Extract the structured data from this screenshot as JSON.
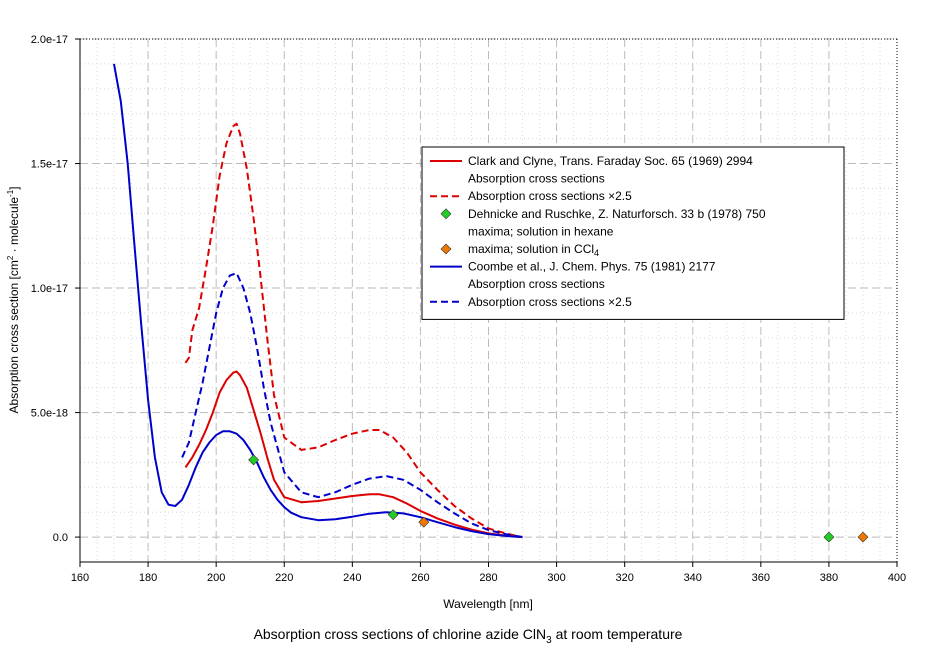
{
  "chart_data": {
    "type": "line",
    "title": "Absorption cross sections of chlorine azide ClN",
    "title_subscript": "3",
    "title_suffix": " at room temperature",
    "xlabel": "Wavelength [nm]",
    "ylabel": "Absorption cross section [cm",
    "ylabel_sup1": "2",
    "ylabel_mid": " · molecule",
    "ylabel_sup2": "-1",
    "ylabel_end": "]",
    "xlim": [
      160,
      400
    ],
    "ylim": [
      -1e-18,
      2e-17
    ],
    "x_ticks": [
      "160",
      "180",
      "200",
      "220",
      "240",
      "260",
      "280",
      "300",
      "320",
      "340",
      "360",
      "380",
      "400"
    ],
    "x_tick_values": [
      160,
      180,
      200,
      220,
      240,
      260,
      280,
      300,
      320,
      340,
      360,
      380,
      400
    ],
    "y_ticks": [
      "0.0",
      "5.0e-18",
      "1.0e-17",
      "1.5e-17",
      "2.0e-17"
    ],
    "y_tick_values": [
      0,
      5e-18,
      1e-17,
      1.5e-17,
      2e-17
    ],
    "colors": {
      "red": "#dd0000",
      "blue": "#0000cc",
      "green": "#22cc22",
      "orange": "#ee7700"
    },
    "series": [
      {
        "name": "Clark and Clyne absorption cross sections",
        "color": "red",
        "dash": false,
        "x": [
          191,
          193,
          195,
          197,
          199,
          201,
          203,
          205,
          206,
          207,
          209,
          211,
          213,
          215,
          217,
          220,
          225,
          230,
          235,
          240,
          245,
          248,
          252,
          256,
          260,
          265,
          270,
          275,
          280,
          285,
          290
        ],
        "y": [
          2.8e-18,
          3.2e-18,
          3.7e-18,
          4.3e-18,
          5e-18,
          5.8e-18,
          6.3e-18,
          6.6e-18,
          6.65e-18,
          6.5e-18,
          6e-18,
          5.1e-18,
          4.2e-18,
          3.2e-18,
          2.3e-18,
          1.6e-18,
          1.4e-18,
          1.45e-18,
          1.55e-18,
          1.65e-18,
          1.72e-18,
          1.72e-18,
          1.6e-18,
          1.35e-18,
          1.05e-18,
          7.5e-19,
          5e-19,
          3e-19,
          1.5e-19,
          6e-20,
          0
        ]
      },
      {
        "name": "Clark and Clyne absorption cross sections ×2.5",
        "color": "red",
        "dash": true,
        "x": [
          191,
          192,
          193,
          195,
          197,
          199,
          201,
          203,
          205,
          206,
          207,
          209,
          211,
          213,
          215,
          217,
          220,
          225,
          230,
          235,
          240,
          245,
          248,
          252,
          256,
          260,
          265,
          270,
          275,
          280,
          285,
          290
        ],
        "y": [
          7e-18,
          7.2e-18,
          8.3e-18,
          9.2e-18,
          1.08e-17,
          1.25e-17,
          1.45e-17,
          1.58e-17,
          1.65e-17,
          1.66e-17,
          1.62e-17,
          1.48e-17,
          1.28e-17,
          1.05e-17,
          8e-18,
          5.7e-18,
          4e-18,
          3.5e-18,
          3.6e-18,
          3.9e-18,
          4.15e-18,
          4.3e-18,
          4.3e-18,
          4e-18,
          3.4e-18,
          2.6e-18,
          1.9e-18,
          1.25e-18,
          7.5e-19,
          3.5e-19,
          1.5e-19,
          0
        ]
      },
      {
        "name": "Coombe et al. absorption cross sections",
        "color": "blue",
        "dash": false,
        "x": [
          170,
          172,
          174,
          176,
          178,
          180,
          182,
          184,
          186,
          188,
          190,
          192,
          194,
          196,
          198,
          200,
          202,
          204,
          206,
          208,
          210,
          212,
          214,
          216,
          218,
          220,
          222,
          225,
          230,
          235,
          240,
          245,
          250,
          255,
          260,
          265,
          270,
          275,
          280,
          285,
          290
        ],
        "y": [
          1.9e-17,
          1.75e-17,
          1.5e-17,
          1.17e-17,
          8.5e-18,
          5.5e-18,
          3.2e-18,
          1.8e-18,
          1.3e-18,
          1.25e-18,
          1.5e-18,
          2.1e-18,
          2.8e-18,
          3.4e-18,
          3.8e-18,
          4.1e-18,
          4.25e-18,
          4.25e-18,
          4.15e-18,
          3.9e-18,
          3.5e-18,
          3e-18,
          2.4e-18,
          1.9e-18,
          1.5e-18,
          1.2e-18,
          9.8e-19,
          8e-19,
          6.8e-19,
          7.2e-19,
          8.2e-19,
          9.4e-19,
          1e-18,
          9.5e-19,
          8e-19,
          6e-19,
          4e-19,
          2.4e-19,
          1.2e-19,
          5e-20,
          0
        ]
      },
      {
        "name": "Coombe et al. absorption cross sections ×2.5",
        "color": "blue",
        "dash": true,
        "x": [
          190,
          192,
          194,
          196,
          198,
          200,
          202,
          204,
          206,
          208,
          210,
          212,
          214,
          216,
          218,
          220,
          225,
          230,
          235,
          240,
          245,
          250,
          255,
          260,
          265,
          270,
          275,
          280,
          285,
          290
        ],
        "y": [
          3.2e-18,
          3.8e-18,
          5e-18,
          6.2e-18,
          7.6e-18,
          9e-18,
          1e-17,
          1.05e-17,
          1.06e-17,
          1e-17,
          9e-18,
          7.6e-18,
          6e-18,
          4.6e-18,
          3.6e-18,
          2.6e-18,
          1.8e-18,
          1.6e-18,
          1.8e-18,
          2.1e-18,
          2.35e-18,
          2.45e-18,
          2.3e-18,
          1.9e-18,
          1.4e-18,
          9.5e-19,
          5.5e-19,
          2.8e-19,
          1.2e-19,
          0
        ]
      },
      {
        "name": "Dehnicke and Ruschke maxima; solution in hexane",
        "color": "green",
        "marker": "diamond",
        "x": [
          211,
          252,
          380
        ],
        "y": [
          3.1e-18,
          9e-19,
          0
        ]
      },
      {
        "name": "Dehnicke and Ruschke maxima; solution in CCl4",
        "color": "orange",
        "marker": "diamond",
        "x": [
          261,
          390
        ],
        "y": [
          6e-19,
          0
        ]
      }
    ],
    "legend": {
      "position": "top-right",
      "entries": [
        {
          "symbol": "red-solid",
          "text": "Clark and Clyne, Trans. Faraday Soc. 65 (1969) 2994"
        },
        {
          "symbol": "none",
          "text": "Absorption cross sections"
        },
        {
          "symbol": "red-dash",
          "text": "Absorption cross sections ×2.5"
        },
        {
          "symbol": "green-diamond",
          "text": "Dehnicke and Ruschke, Z. Naturforsch. 33 b (1978) 750"
        },
        {
          "symbol": "none",
          "text": "maxima; solution in hexane"
        },
        {
          "symbol": "orange-diamond",
          "text": "maxima; solution in CCl",
          "sub": "4"
        },
        {
          "symbol": "blue-solid",
          "text": "Coombe et al., J. Chem. Phys. 75 (1981) 2177"
        },
        {
          "symbol": "none",
          "text": "Absorption cross sections"
        },
        {
          "symbol": "blue-dash",
          "text": "Absorption cross sections ×2.5"
        }
      ]
    }
  }
}
